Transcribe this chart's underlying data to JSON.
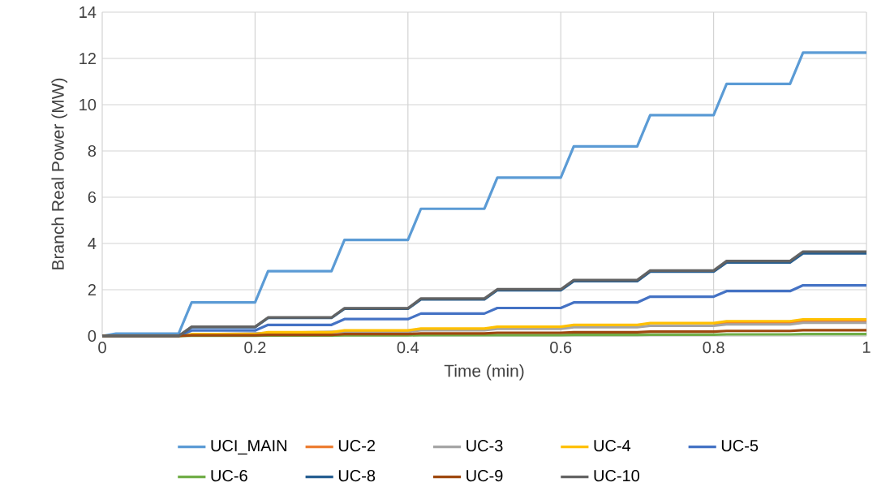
{
  "chart_data": {
    "type": "line",
    "xlabel": "Time (min)",
    "ylabel": "Branch Real Power (MW)",
    "x": [
      0,
      0.018,
      0.1,
      0.117,
      0.2,
      0.217,
      0.3,
      0.317,
      0.4,
      0.417,
      0.5,
      0.517,
      0.6,
      0.617,
      0.7,
      0.717,
      0.8,
      0.817,
      0.9,
      0.917,
      1
    ],
    "xlim": [
      0,
      1
    ],
    "xticks": [
      0,
      0.2,
      0.4,
      0.6,
      0.8,
      1
    ],
    "ylim": [
      0,
      14
    ],
    "yticks": [
      0,
      2,
      4,
      6,
      8,
      10,
      12,
      14
    ],
    "grid": true,
    "legend": "bottom",
    "series": [
      {
        "name": "UCI_MAIN",
        "color": "#5b9bd5",
        "values": [
          0,
          0.1,
          0.1,
          1.45,
          1.45,
          2.8,
          2.8,
          4.15,
          4.15,
          5.5,
          5.5,
          6.85,
          6.85,
          8.2,
          8.2,
          9.55,
          9.55,
          10.9,
          10.9,
          12.25,
          12.25
        ]
      },
      {
        "name": "UC-2",
        "color": "#ed7d31",
        "values": [
          null,
          null,
          null,
          null,
          null,
          null,
          null,
          null,
          null,
          null,
          null,
          null,
          null,
          null,
          null,
          null,
          0.49,
          0.56,
          0.56,
          0.63,
          0.63
        ]
      },
      {
        "name": "UC-3",
        "color": "#a5a5a5",
        "values": [
          0,
          0,
          0,
          0.06,
          null,
          null,
          null,
          0.19,
          0.19,
          0.25,
          0.25,
          0.31,
          0.31,
          0.38,
          0.38,
          0.44,
          0.44,
          0.5,
          0.5,
          0.57,
          0.57
        ]
      },
      {
        "name": "UC-4",
        "color": "#ffc000",
        "values": [
          0,
          0,
          0,
          0.08,
          0.08,
          0.16,
          0.16,
          0.24,
          0.24,
          0.32,
          0.32,
          0.4,
          0.4,
          0.48,
          0.48,
          0.56,
          0.56,
          0.64,
          0.64,
          0.72,
          0.72
        ]
      },
      {
        "name": "UC-5",
        "color": "#4472c4",
        "values": [
          0,
          0,
          0,
          0.24,
          0.24,
          0.48,
          0.48,
          0.73,
          0.73,
          0.97,
          0.97,
          1.21,
          1.21,
          1.45,
          1.45,
          1.7,
          1.7,
          1.94,
          1.94,
          2.19,
          2.19
        ]
      },
      {
        "name": "UC-6",
        "color": "#70ad47",
        "values": [
          0,
          0,
          0,
          0.01,
          0.01,
          0.02,
          0.02,
          0.03,
          0.03,
          0.04,
          0.04,
          0.04,
          0.04,
          0.05,
          0.05,
          0.06,
          0.06,
          0.07,
          0.07,
          0.08,
          0.08
        ]
      },
      {
        "name": "UC-8",
        "color": "#255e91",
        "values": [
          0,
          0,
          0,
          0.38,
          0.38,
          0.78,
          0.78,
          1.18,
          1.18,
          1.58,
          1.58,
          1.98,
          1.98,
          2.37,
          2.37,
          2.78,
          2.78,
          3.18,
          3.18,
          3.57,
          3.57
        ]
      },
      {
        "name": "UC-9",
        "color": "#9e480e",
        "values": [
          0,
          0,
          0,
          0.03,
          0.03,
          0.05,
          0.05,
          0.08,
          0.08,
          0.11,
          0.11,
          0.14,
          0.14,
          0.16,
          0.16,
          0.19,
          0.19,
          0.22,
          0.22,
          0.25,
          0.25
        ]
      },
      {
        "name": "UC-10",
        "color": "#636363",
        "values": [
          0,
          0,
          0,
          0.4,
          0.4,
          0.8,
          0.8,
          1.2,
          1.2,
          1.62,
          1.62,
          2.02,
          2.02,
          2.42,
          2.42,
          2.83,
          2.83,
          3.24,
          3.24,
          3.65,
          3.65
        ]
      }
    ]
  }
}
